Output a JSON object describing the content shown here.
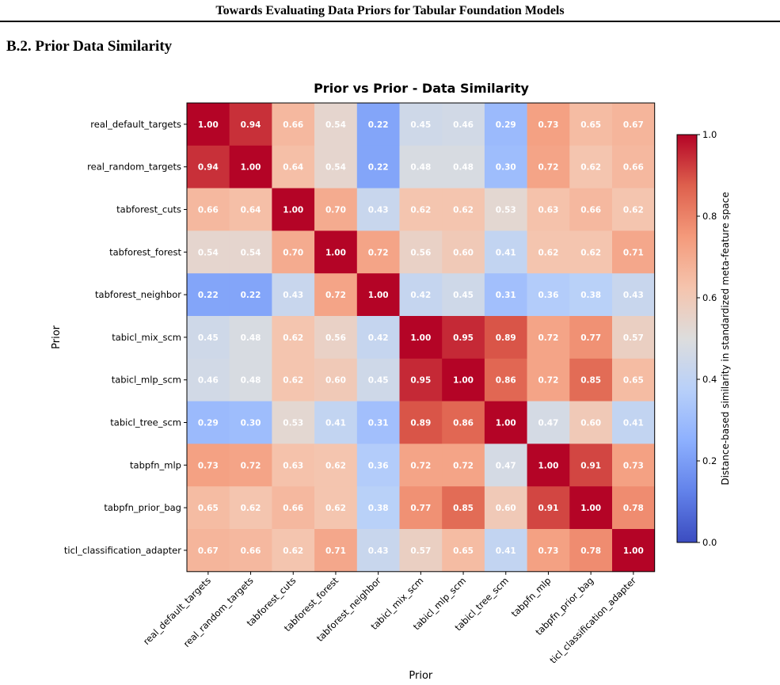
{
  "paper": {
    "running_header": "Towards Evaluating Data Priors for Tabular Foundation Models",
    "section_heading": "B.2. Prior Data Similarity"
  },
  "chart_data": {
    "type": "heatmap",
    "title": "Prior vs Prior - Data Similarity",
    "xlabel": "Prior",
    "ylabel": "Prior",
    "colorbar_label": "Distance-based similarity in standardized meta-feature space",
    "colormap": "coolwarm",
    "vmin": 0.0,
    "vmax": 1.0,
    "colorbar_ticks": [
      "0.0",
      "0.2",
      "0.4",
      "0.6",
      "0.8",
      "1.0"
    ],
    "categories": [
      "real_default_targets",
      "real_random_targets",
      "tabforest_cuts",
      "tabforest_forest",
      "tabforest_neighbor",
      "tabicl_mix_scm",
      "tabicl_mlp_scm",
      "tabicl_tree_scm",
      "tabpfn_mlp",
      "tabpfn_prior_bag",
      "ticl_classification_adapter"
    ],
    "values": [
      [
        1.0,
        0.94,
        0.66,
        0.54,
        0.22,
        0.45,
        0.46,
        0.29,
        0.73,
        0.65,
        0.67
      ],
      [
        0.94,
        1.0,
        0.64,
        0.54,
        0.22,
        0.48,
        0.48,
        0.3,
        0.72,
        0.62,
        0.66
      ],
      [
        0.66,
        0.64,
        1.0,
        0.7,
        0.43,
        0.62,
        0.62,
        0.53,
        0.63,
        0.66,
        0.62
      ],
      [
        0.54,
        0.54,
        0.7,
        1.0,
        0.72,
        0.56,
        0.6,
        0.41,
        0.62,
        0.62,
        0.71
      ],
      [
        0.22,
        0.22,
        0.43,
        0.72,
        1.0,
        0.42,
        0.45,
        0.31,
        0.36,
        0.38,
        0.43
      ],
      [
        0.45,
        0.48,
        0.62,
        0.56,
        0.42,
        1.0,
        0.95,
        0.89,
        0.72,
        0.77,
        0.57
      ],
      [
        0.46,
        0.48,
        0.62,
        0.6,
        0.45,
        0.95,
        1.0,
        0.86,
        0.72,
        0.85,
        0.65
      ],
      [
        0.29,
        0.3,
        0.53,
        0.41,
        0.31,
        0.89,
        0.86,
        1.0,
        0.47,
        0.6,
        0.41
      ],
      [
        0.73,
        0.72,
        0.63,
        0.62,
        0.36,
        0.72,
        0.72,
        0.47,
        1.0,
        0.91,
        0.73
      ],
      [
        0.65,
        0.62,
        0.66,
        0.62,
        0.38,
        0.77,
        0.85,
        0.6,
        0.91,
        1.0,
        0.78
      ],
      [
        0.67,
        0.66,
        0.62,
        0.71,
        0.43,
        0.57,
        0.65,
        0.41,
        0.73,
        0.78,
        1.0
      ]
    ],
    "cell_label_color": "#ffffff"
  }
}
